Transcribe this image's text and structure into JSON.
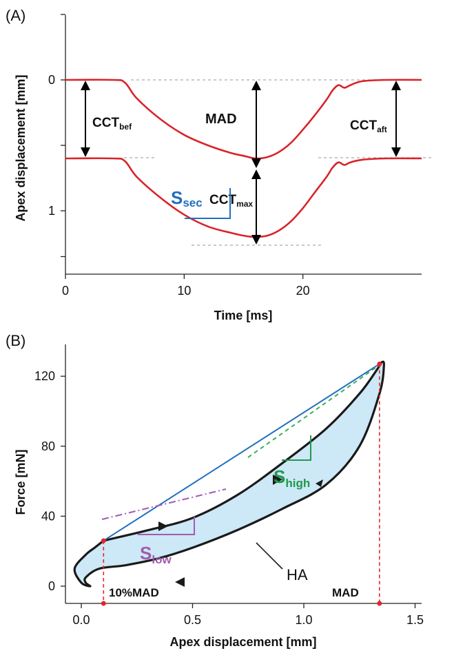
{
  "chart_data": [
    {
      "panel": "(A)",
      "type": "line",
      "xlabel": "Time [ms]",
      "ylabel": "Apex displacement [mm]",
      "xlim": [
        0,
        30
      ],
      "ylim": [
        0,
        1.35
      ],
      "y_inverted": true,
      "x_ticks": [
        "0",
        "10",
        "20"
      ],
      "x_tick_values": [
        0,
        10,
        20
      ],
      "y_ticks": [
        "0",
        "1"
      ],
      "y_tick_values": [
        0,
        1
      ],
      "series": [
        {
          "curve": "upper",
          "color": "#d9232a",
          "x": [
            0,
            4,
            5,
            6,
            8,
            10,
            12,
            14,
            15,
            16,
            17,
            18,
            19,
            20,
            21,
            22,
            22.5,
            23,
            23.5,
            24,
            25,
            27,
            30
          ],
          "y": [
            0,
            0,
            0.02,
            0.14,
            0.3,
            0.42,
            0.5,
            0.56,
            0.58,
            0.6,
            0.59,
            0.55,
            0.48,
            0.38,
            0.27,
            0.15,
            0.08,
            0.04,
            0.06,
            0.04,
            0.01,
            0,
            0
          ]
        },
        {
          "curve": "lower",
          "color": "#d9232a",
          "x": [
            0,
            4,
            5,
            6,
            8,
            10,
            12,
            14,
            15,
            16,
            17,
            18,
            19,
            20,
            21,
            22,
            22.5,
            23,
            23.5,
            24,
            25,
            27,
            30
          ],
          "y": [
            0.6,
            0.6,
            0.62,
            0.74,
            0.9,
            1.03,
            1.12,
            1.17,
            1.19,
            1.2,
            1.19,
            1.15,
            1.08,
            0.98,
            0.86,
            0.74,
            0.67,
            0.63,
            0.65,
            0.63,
            0.61,
            0.6,
            0.6
          ]
        }
      ],
      "annotations": [
        {
          "label": "CCT",
          "sub": "bef"
        },
        {
          "label": "MAD",
          "sub": ""
        },
        {
          "label": "CCT",
          "sub": "aft"
        },
        {
          "label": "CCT",
          "sub": "max"
        }
      ]
    },
    {
      "panel": "(B)",
      "type": "line",
      "xlabel": "Apex displacement [mm]",
      "ylabel": "Force [mN]",
      "xlim": [
        -0.1,
        1.5
      ],
      "ylim": [
        -5,
        137
      ],
      "x_ticks": [
        "0.0",
        "0.5",
        "1.0",
        "1.5"
      ],
      "x_tick_values": [
        0,
        0.5,
        1.0,
        1.5
      ],
      "y_ticks": [
        "0",
        "40",
        "80",
        "120"
      ],
      "y_tick_values": [
        0,
        40,
        80,
        120
      ],
      "hysteresis_loop": {
        "fill_color": "#cde8f6",
        "stroke_color": "#1a1a1a",
        "x": [
          0.1,
          0.3,
          0.5,
          0.7,
          0.9,
          1.1,
          1.25,
          1.33,
          1.35,
          1.36,
          1.34,
          1.25,
          1.1,
          0.9,
          0.7,
          0.5,
          0.35,
          0.2,
          0.08,
          0.02,
          0.02,
          0.04,
          0.0,
          -0.03,
          0.02,
          0.06,
          0.1
        ],
        "y": [
          26,
          32,
          39,
          52,
          70,
          90,
          110,
          124,
          128,
          126,
          110,
          80,
          58,
          44,
          32,
          22,
          16,
          12,
          10,
          5,
          2,
          0,
          2,
          10,
          18,
          22,
          26
        ]
      },
      "secant": {
        "from": [
          0.1,
          26
        ],
        "to": [
          1.34,
          127
        ],
        "color": "#1f6fbf"
      },
      "marks": {
        "low_point": [
          0.1,
          26
        ],
        "high_point": [
          1.34,
          127
        ],
        "color": "#e8242a"
      },
      "labels": {
        "S_sec": {
          "main": "S",
          "sub": "sec",
          "color": "#1f6fbf"
        },
        "S_high": {
          "main": "S",
          "sub": "high",
          "color": "#1e9a4a"
        },
        "S_low": {
          "main": "S",
          "sub": "low",
          "color": "#a25bb0"
        },
        "HA": "HA",
        "pct_mad": "10%MAD",
        "mad": "MAD"
      }
    }
  ]
}
